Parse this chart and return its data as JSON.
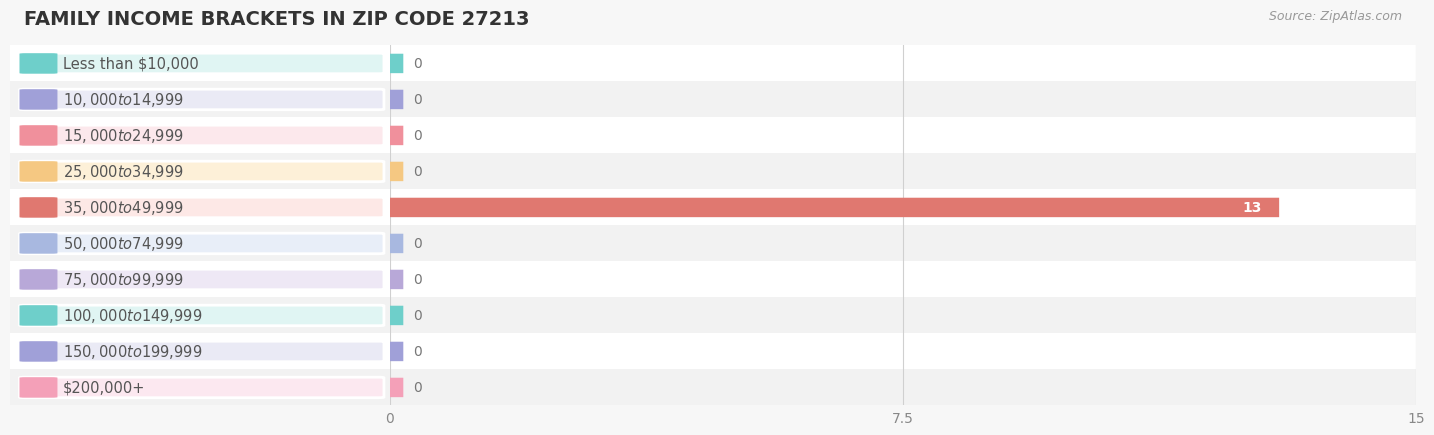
{
  "title": "FAMILY INCOME BRACKETS IN ZIP CODE 27213",
  "source": "Source: ZipAtlas.com",
  "categories": [
    "Less than $10,000",
    "$10,000 to $14,999",
    "$15,000 to $24,999",
    "$25,000 to $34,999",
    "$35,000 to $49,999",
    "$50,000 to $74,999",
    "$75,000 to $99,999",
    "$100,000 to $149,999",
    "$150,000 to $199,999",
    "$200,000+"
  ],
  "values": [
    0,
    0,
    0,
    0,
    13,
    0,
    0,
    0,
    0,
    0
  ],
  "bar_colors": [
    "#6ecfca",
    "#a0a0d8",
    "#f0909c",
    "#f5c882",
    "#e07870",
    "#a8b8e0",
    "#b8a8d8",
    "#6ecfca",
    "#a0a0d8",
    "#f4a0b8"
  ],
  "label_bg_colors": [
    "#e0f5f3",
    "#eaeaf5",
    "#fce8ec",
    "#fdf0d8",
    "#fde8e6",
    "#e8eef8",
    "#eee8f5",
    "#e0f5f3",
    "#eaeaf5",
    "#fce8f0"
  ],
  "row_bg_colors": [
    "#ffffff",
    "#f2f2f2"
  ],
  "xlim": [
    0,
    15
  ],
  "xticks": [
    0,
    7.5,
    15
  ],
  "background_color": "#f7f7f7",
  "title_fontsize": 14,
  "source_fontsize": 9,
  "label_fontsize": 10.5,
  "value_fontsize": 10
}
